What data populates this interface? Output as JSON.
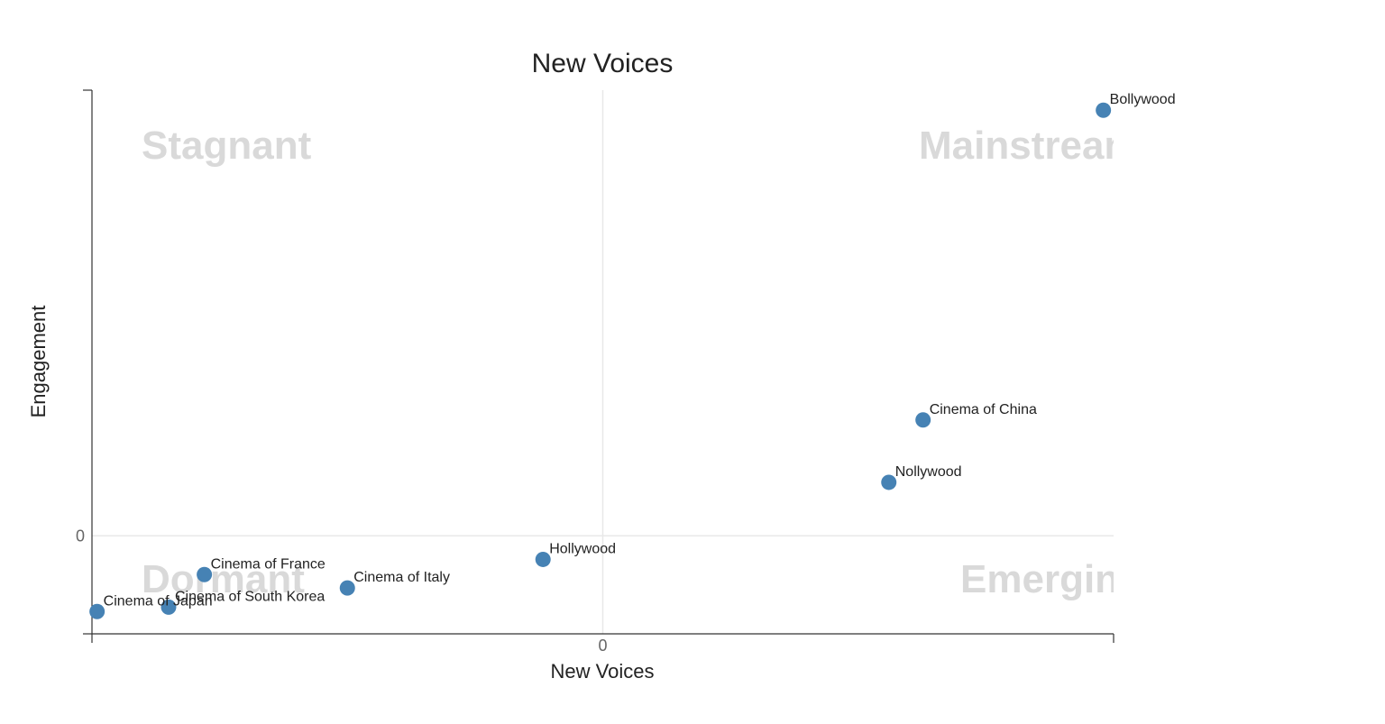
{
  "chart_data": {
    "type": "scatter",
    "title": "New Voices",
    "xlabel": "New Voices",
    "ylabel": "Engagement",
    "xlim": [
      -1.0,
      1.0
    ],
    "ylim": [
      -0.22,
      1.0
    ],
    "x_ticks": [
      {
        "value": 0,
        "label": "0"
      }
    ],
    "y_ticks": [
      {
        "value": 0,
        "label": "0"
      }
    ],
    "quadrants": {
      "top_left": "Stagnant",
      "top_right": "Mainstream",
      "bottom_left": "Dormant",
      "bottom_right": "Emerging"
    },
    "points": [
      {
        "label": "Bollywood",
        "x": 0.98,
        "y": 0.955
      },
      {
        "label": "Cinema of China",
        "x": 0.627,
        "y": 0.26
      },
      {
        "label": "Nollywood",
        "x": 0.56,
        "y": 0.12
      },
      {
        "label": "Hollywood",
        "x": -0.117,
        "y": -0.053
      },
      {
        "label": "Cinema of France",
        "x": -0.78,
        "y": -0.087
      },
      {
        "label": "Cinema of Italy",
        "x": -0.5,
        "y": -0.117
      },
      {
        "label": "Cinema of South Korea",
        "x": -0.85,
        "y": -0.16
      },
      {
        "label": "Cinema of Japan",
        "x": -0.99,
        "y": -0.17
      }
    ],
    "colors": {
      "point": "#4682b4",
      "quadrant_text": "#d9d9d9",
      "axis": "#333333",
      "gridline": "#e8e8e8"
    }
  }
}
